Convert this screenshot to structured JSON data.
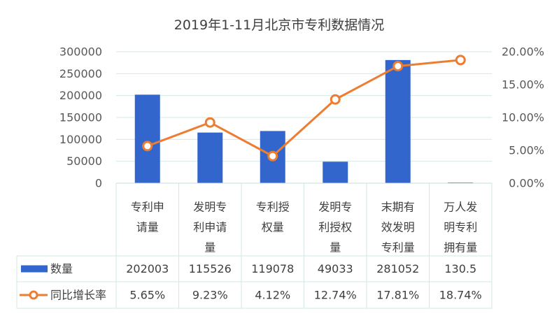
{
  "chart_data": {
    "type": "bar",
    "title": "2019年1-11月北京市专利数据情况",
    "categories": [
      [
        "专利申",
        "请量"
      ],
      [
        "发明专",
        "利申请",
        "量"
      ],
      [
        "专利授",
        "权量"
      ],
      [
        "发明专",
        "利授权",
        "量"
      ],
      [
        "末期有",
        "效发明",
        "专利量"
      ],
      [
        "万人发",
        "明专利",
        "拥有量"
      ]
    ],
    "series": [
      {
        "name": "数量",
        "type": "bar",
        "axis": "left",
        "color": "#3366CC",
        "values": [
          202003,
          115526,
          119078,
          49033,
          281052,
          130.5
        ],
        "labels": [
          "202003",
          "115526",
          "119078",
          "49033",
          "281052",
          "130.5"
        ]
      },
      {
        "name": "同比增长率",
        "type": "line",
        "axis": "right",
        "color": "#ED7D31",
        "values": [
          5.65,
          9.23,
          4.12,
          12.74,
          17.81,
          18.74
        ],
        "labels": [
          "5.65%",
          "9.23%",
          "4.12%",
          "12.74%",
          "17.81%",
          "18.74%"
        ]
      }
    ],
    "y_left": {
      "ylim": [
        0,
        300000
      ],
      "ticks": [
        "0",
        "50000",
        "100000",
        "150000",
        "200000",
        "250000",
        "300000"
      ]
    },
    "y_right": {
      "ylim": [
        0,
        20
      ],
      "ticks": [
        "0.00%",
        "5.00%",
        "10.00%",
        "15.00%",
        "20.00%"
      ]
    },
    "grid": true,
    "data_table": true
  }
}
